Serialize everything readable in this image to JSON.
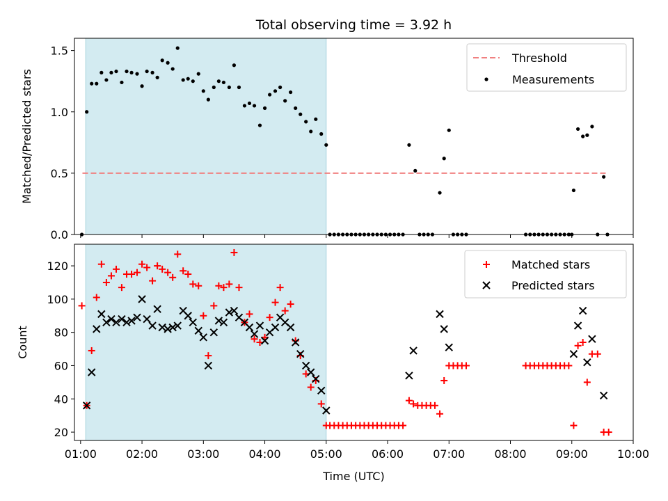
{
  "chart_data": [
    {
      "type": "scatter",
      "title": "Total observing time = 3.92 h",
      "ylabel": "Matched/Predicted stars",
      "xlabel": "",
      "xlim": [
        0.9,
        10.0
      ],
      "ylim": [
        0,
        1.6
      ],
      "yticks": [
        0.0,
        0.5,
        1.0,
        1.5
      ],
      "ytick_labels": [
        "0.0",
        "0.5",
        "1.0",
        "1.5"
      ],
      "highlight_span": {
        "start": 1.083,
        "end": 5.0,
        "color": "#d3ebf1"
      },
      "legend": {
        "placement": "upper right",
        "entries": [
          "Threshold",
          "Measurements"
        ]
      },
      "threshold": {
        "name": "Threshold",
        "value": 0.5,
        "x_range": [
          1.03,
          9.58
        ],
        "color": "#f08080"
      },
      "series": [
        {
          "name": "Measurements",
          "color": "#000000",
          "x": [
            1.02,
            1.1,
            1.18,
            1.26,
            1.34,
            1.42,
            1.5,
            1.58,
            1.67,
            1.75,
            1.83,
            1.92,
            2.0,
            2.08,
            2.17,
            2.25,
            2.33,
            2.42,
            2.5,
            2.58,
            2.67,
            2.75,
            2.83,
            2.92,
            3.0,
            3.08,
            3.17,
            3.25,
            3.33,
            3.42,
            3.5,
            3.58,
            3.67,
            3.75,
            3.83,
            3.92,
            4.0,
            4.08,
            4.17,
            4.25,
            4.33,
            4.42,
            4.5,
            4.58,
            4.67,
            4.75,
            4.83,
            4.92,
            5.0,
            5.06,
            5.13,
            5.2,
            5.27,
            5.34,
            5.41,
            5.48,
            5.55,
            5.62,
            5.69,
            5.76,
            5.83,
            5.9,
            5.97,
            6.04,
            6.11,
            6.18,
            6.25,
            6.35,
            6.45,
            6.52,
            6.59,
            6.66,
            6.73,
            6.85,
            6.92,
            7.0,
            7.07,
            7.14,
            7.21,
            7.28,
            8.25,
            8.32,
            8.39,
            8.46,
            8.53,
            8.6,
            8.67,
            8.74,
            8.81,
            8.88,
            8.95,
            9.0,
            9.03,
            9.1,
            9.18,
            9.25,
            9.33,
            9.42,
            9.52,
            9.58
          ],
          "y": [
            0.0,
            1.0,
            1.23,
            1.23,
            1.32,
            1.26,
            1.32,
            1.33,
            1.24,
            1.33,
            1.32,
            1.31,
            1.21,
            1.33,
            1.32,
            1.28,
            1.42,
            1.4,
            1.35,
            1.52,
            1.26,
            1.27,
            1.25,
            1.31,
            1.17,
            1.1,
            1.2,
            1.25,
            1.24,
            1.2,
            1.38,
            1.2,
            1.05,
            1.07,
            1.05,
            0.89,
            1.03,
            1.14,
            1.17,
            1.2,
            1.09,
            1.16,
            1.03,
            0.98,
            0.92,
            0.84,
            0.94,
            0.82,
            0.73,
            0.0,
            0.0,
            0.0,
            0.0,
            0.0,
            0.0,
            0.0,
            0.0,
            0.0,
            0.0,
            0.0,
            0.0,
            0.0,
            0.0,
            0.0,
            0.0,
            0.0,
            0.0,
            0.73,
            0.52,
            0.0,
            0.0,
            0.0,
            0.0,
            0.34,
            0.62,
            0.85,
            0.0,
            0.0,
            0.0,
            0.0,
            0.0,
            0.0,
            0.0,
            0.0,
            0.0,
            0.0,
            0.0,
            0.0,
            0.0,
            0.0,
            0.0,
            0.0,
            0.36,
            0.86,
            0.8,
            0.81,
            0.88,
            0.0,
            0.47,
            0.0
          ]
        }
      ]
    },
    {
      "type": "scatter",
      "title": "",
      "ylabel": "Count",
      "xlabel": "Time (UTC)",
      "xlim": [
        0.9,
        10.0
      ],
      "ylim": [
        15,
        133
      ],
      "yticks": [
        20,
        40,
        60,
        80,
        100,
        120
      ],
      "ytick_labels": [
        "20",
        "40",
        "60",
        "80",
        "100",
        "120"
      ],
      "xticks": [
        1,
        2,
        3,
        4,
        5,
        6,
        7,
        8,
        9,
        10
      ],
      "xtick_labels": [
        "01:00",
        "02:00",
        "03:00",
        "04:00",
        "05:00",
        "06:00",
        "07:00",
        "08:00",
        "09:00",
        "10:00"
      ],
      "highlight_span": {
        "start": 1.083,
        "end": 5.0,
        "color": "#d3ebf1"
      },
      "legend": {
        "placement": "upper right",
        "entries": [
          "Matched stars",
          "Predicted stars"
        ]
      },
      "series": [
        {
          "name": "Matched stars",
          "marker": "plus",
          "color": "#ff0000",
          "x": [
            1.02,
            1.1,
            1.18,
            1.26,
            1.34,
            1.42,
            1.5,
            1.58,
            1.67,
            1.75,
            1.83,
            1.92,
            2.0,
            2.08,
            2.17,
            2.25,
            2.33,
            2.42,
            2.5,
            2.58,
            2.67,
            2.75,
            2.83,
            2.92,
            3.0,
            3.08,
            3.17,
            3.25,
            3.33,
            3.42,
            3.5,
            3.58,
            3.67,
            3.75,
            3.83,
            3.92,
            4.0,
            4.08,
            4.17,
            4.25,
            4.33,
            4.42,
            4.5,
            4.58,
            4.67,
            4.75,
            4.83,
            4.92,
            5.0,
            5.06,
            5.13,
            5.2,
            5.27,
            5.34,
            5.41,
            5.48,
            5.55,
            5.62,
            5.69,
            5.76,
            5.83,
            5.9,
            5.97,
            6.04,
            6.11,
            6.18,
            6.25,
            6.35,
            6.42,
            6.49,
            6.56,
            6.63,
            6.7,
            6.77,
            6.85,
            6.92,
            7.0,
            7.07,
            7.14,
            7.21,
            7.28,
            8.25,
            8.32,
            8.39,
            8.46,
            8.53,
            8.6,
            8.67,
            8.74,
            8.81,
            8.88,
            8.95,
            9.03,
            9.1,
            9.18,
            9.25,
            9.33,
            9.42,
            9.52,
            9.6
          ],
          "y": [
            96,
            36,
            69,
            101,
            121,
            110,
            114,
            118,
            107,
            115,
            115,
            116,
            121,
            119,
            111,
            120,
            118,
            116,
            113,
            127,
            117,
            115,
            109,
            108,
            90,
            66,
            96,
            108,
            107,
            109,
            128,
            107,
            86,
            91,
            76,
            74,
            77,
            89,
            98,
            107,
            93,
            97,
            75,
            66,
            55,
            47,
            51,
            37,
            24,
            24,
            24,
            24,
            24,
            24,
            24,
            24,
            24,
            24,
            24,
            24,
            24,
            24,
            24,
            24,
            24,
            24,
            24,
            39,
            37,
            36,
            36,
            36,
            36,
            36,
            31,
            51,
            60,
            60,
            60,
            60,
            60,
            60,
            60,
            60,
            60,
            60,
            60,
            60,
            60,
            60,
            60,
            60,
            24,
            72,
            74,
            50,
            67,
            67,
            20,
            20
          ]
        },
        {
          "name": "Predicted stars",
          "marker": "x",
          "color": "#000000",
          "x": [
            1.1,
            1.18,
            1.26,
            1.34,
            1.42,
            1.5,
            1.58,
            1.67,
            1.75,
            1.83,
            1.92,
            2.0,
            2.08,
            2.17,
            2.25,
            2.33,
            2.42,
            2.5,
            2.58,
            2.67,
            2.75,
            2.83,
            2.92,
            3.0,
            3.08,
            3.17,
            3.25,
            3.33,
            3.42,
            3.5,
            3.58,
            3.67,
            3.75,
            3.83,
            3.92,
            4.0,
            4.08,
            4.17,
            4.25,
            4.33,
            4.42,
            4.5,
            4.58,
            4.67,
            4.75,
            4.83,
            4.92,
            5.0,
            6.35,
            6.42,
            6.85,
            6.92,
            7.0,
            9.03,
            9.1,
            9.18,
            9.25,
            9.33,
            9.52
          ],
          "y": [
            36,
            56,
            82,
            91,
            86,
            88,
            86,
            88,
            86,
            87,
            89,
            100,
            88,
            84,
            94,
            83,
            82,
            83,
            84,
            93,
            90,
            86,
            81,
            77,
            60,
            80,
            87,
            86,
            92,
            93,
            89,
            86,
            83,
            79,
            84,
            75,
            80,
            83,
            89,
            86,
            83,
            74,
            67,
            60,
            56,
            52,
            45,
            33,
            54,
            69,
            91,
            82,
            71,
            67,
            84,
            93,
            62,
            76,
            42
          ]
        }
      ]
    }
  ]
}
